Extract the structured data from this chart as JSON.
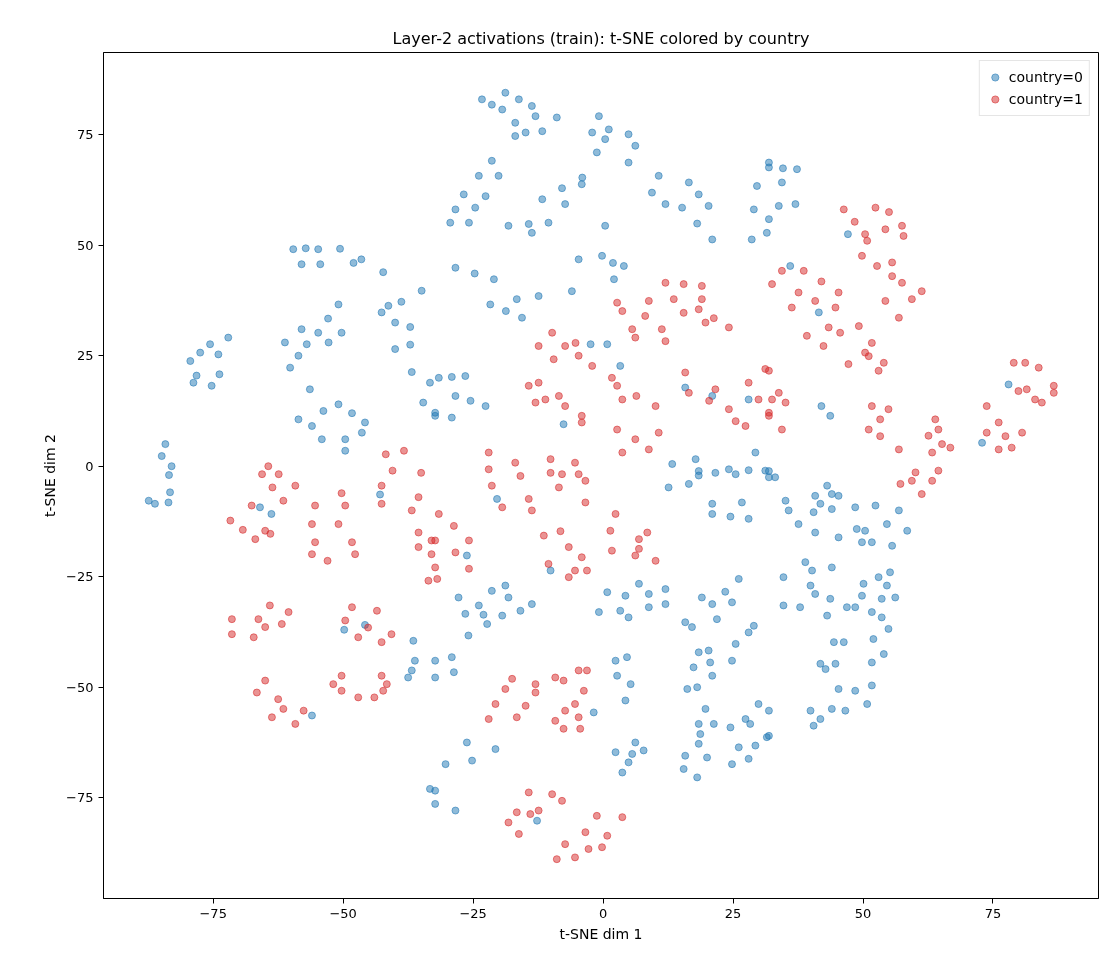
{
  "chart_data": {
    "type": "scatter",
    "title": "Layer-2 activations (train): t-SNE colored by country",
    "xlabel": "t-SNE dim 1",
    "ylabel": "t-SNE dim 2",
    "xlim": [
      -96.1,
      95.3
    ],
    "ylim": [
      -97.8,
      93.6
    ],
    "xticks": [
      -75,
      -50,
      -25,
      0,
      25,
      50,
      75
    ],
    "yticks": [
      -75,
      -50,
      -25,
      0,
      25,
      50,
      75
    ],
    "grid": false,
    "legend": "top right",
    "marker": "circle",
    "series": [
      {
        "name": "country=0",
        "color": "#1f77b4",
        "x": [
          -59.6,
          -57.2,
          -54.8,
          -58.0,
          -54.4,
          -50.6,
          -46.5,
          -42.3,
          -48.0,
          -42.6,
          -38.8,
          -34.9,
          -41.3,
          -40.0,
          -40.0,
          -37.1,
          -37.1,
          -54.8,
          -52.9,
          -50.9,
          -50.3,
          -52.8,
          -61.2,
          -58.0,
          -60.2,
          -58.6,
          -57.0,
          -79.4,
          -77.5,
          -75.6,
          -74.0,
          -72.1,
          -78.8,
          -78.2,
          -75.3,
          -73.8,
          -36.8,
          -33.3,
          -34.6,
          -32.3,
          -56.4,
          -53.8,
          -58.6,
          -56.0,
          -54.1,
          -50.9,
          -45.8,
          -46.4,
          -49.6,
          -49.6,
          -48.3,
          -84.2,
          -84.9,
          -83.0,
          -83.5,
          -83.3,
          -86.2,
          -87.4,
          -83.6,
          -66.0,
          -63.8,
          -42.9,
          -49.8,
          -45.8,
          -36.5,
          -36.2,
          -36.8,
          -37.5,
          -56.0,
          -33.3,
          -32.3,
          -23.3,
          -21.4,
          -19.4,
          -18.8,
          -16.2,
          -13.7,
          -16.9,
          -13.0,
          -8.9,
          -16.9,
          -11.7,
          -14.9,
          -0.8,
          -2.1,
          -1.2,
          1.1,
          0.4,
          4.9,
          6.2,
          4.9,
          -23.9,
          -21.4,
          -22.6,
          -20.1,
          -28.4,
          -26.8,
          -25.8,
          -24.6,
          -29.4,
          -11.7,
          -7.9,
          -4.0,
          -7.3,
          -4.1,
          -18.2,
          -14.3,
          -10.5,
          -13.7,
          0.4,
          10.7,
          9.4,
          12.0,
          16.5,
          18.4,
          20.3,
          15.2,
          18.1,
          21.0,
          29.6,
          29.0,
          28.6,
          31.9,
          -4.7,
          -0.2,
          4.0,
          2.1,
          1.9,
          -28.4,
          -24.7,
          -21.0,
          -21.7,
          -18.7,
          -15.6,
          -16.6,
          -12.4,
          -6.0,
          -2.4,
          0.8,
          -31.6,
          -29.1,
          -26.5,
          -28.4,
          -25.5,
          -22.6,
          -32.3,
          -29.1,
          -7.6,
          3.3,
          21.0,
          15.8,
          28.0,
          13.3,
          17.8,
          18.4,
          21.6,
          24.2,
          28.0,
          31.9,
          29.3,
          31.9,
          34.6,
          37.3,
          34.4,
          37.0,
          31.9,
          33.8,
          31.5,
          47.1,
          36.0,
          41.5,
          42.0,
          43.7,
          72.9,
          78.0,
          -20.4,
          12.6,
          16.5,
          21.0,
          26.7,
          21.0,
          24.5,
          28.0,
          18.4,
          25.5,
          31.9,
          -26.2,
          -10.1,
          -26.5,
          -23.0,
          -19.4,
          -25.9,
          -22.3,
          -21.4,
          -18.2,
          -18.8,
          -13.7,
          -27.8,
          -23.9,
          -15.9,
          -0.8,
          3.3,
          4.3,
          8.8,
          6.9,
          12.0,
          4.9,
          8.8,
          0.8,
          12.0,
          15.8,
          19.0,
          21.0,
          23.5,
          26.1,
          21.9,
          24.8,
          17.1,
          -32.3,
          -29.1,
          -32.3,
          -28.7,
          25.5,
          28.0,
          29.0,
          2.4,
          4.6,
          2.7,
          5.3,
          4.3,
          18.4,
          20.3,
          16.2,
          17.4,
          21.0,
          24.8,
          18.1,
          20.6,
          -1.8,
          -30.3,
          -26.2,
          -25.2,
          -20.7,
          -32.3,
          -28.4,
          2.4,
          6.2,
          3.7,
          4.9,
          5.6,
          7.8,
          18.4,
          19.7,
          15.8,
          18.4,
          18.1,
          20.0,
          15.5,
          21.3,
          18.7,
          24.5,
          27.4,
          28.3,
          29.9,
          24.8,
          26.1,
          28.0,
          29.3,
          31.9,
          -12.7,
          31.2,
          33.1,
          35.1,
          40.8,
          35.7,
          40.5,
          37.6,
          40.8,
          43.1,
          44.0,
          41.8,
          44.0,
          45.3,
          48.5,
          45.3,
          49.8,
          48.8,
          50.4,
          52.4,
          54.6,
          51.7,
          55.6,
          56.9,
          58.5,
          34.7,
          38.9,
          40.2,
          44.0,
          34.7,
          39.9,
          37.9,
          40.8,
          43.7,
          50.1,
          43.1,
          46.9,
          48.5,
          49.8,
          51.7,
          53.6,
          53.0,
          55.2,
          54.6,
          56.2,
          53.6,
          41.8,
          44.4,
          44.7,
          46.3,
          42.8,
          51.7,
          52.0,
          54.0,
          54.9,
          39.9,
          45.3,
          41.8,
          44.0,
          40.5,
          46.6,
          48.5,
          50.8,
          51.7,
          31.9,
          31.5
        ],
        "values": [
          49.1,
          49.3,
          49.1,
          45.7,
          45.7,
          49.2,
          46.8,
          43.9,
          46.0,
          34.8,
          37.2,
          39.7,
          36.3,
          32.5,
          26.5,
          31.5,
          27.5,
          30.2,
          33.4,
          36.6,
          30.2,
          28.0,
          28.0,
          31.0,
          22.3,
          25.0,
          27.6,
          23.8,
          25.7,
          27.6,
          25.3,
          29.1,
          18.9,
          20.5,
          18.2,
          20.8,
          21.3,
          18.9,
          14.4,
          11.4,
          17.4,
          12.5,
          10.6,
          9.1,
          6.1,
          14.0,
          9.9,
          7.6,
          6.1,
          3.5,
          12.0,
          5.0,
          2.3,
          0.0,
          -2.0,
          -5.9,
          -8.5,
          -7.8,
          -8.2,
          -9.3,
          -10.8,
          -6.4,
          -37.0,
          -35.9,
          -39.5,
          -44.0,
          -46.2,
          -47.8,
          -56.4,
          -73.0,
          -76.4,
          83.0,
          81.8,
          80.7,
          84.5,
          83.0,
          81.5,
          77.7,
          79.2,
          78.9,
          74.7,
          75.8,
          75.5,
          79.2,
          75.5,
          71.0,
          76.2,
          74.0,
          75.1,
          72.5,
          68.7,
          65.7,
          69.1,
          61.1,
          65.7,
          58.1,
          61.5,
          55.1,
          58.5,
          55.1,
          60.4,
          62.9,
          65.3,
          59.3,
          63.8,
          54.4,
          54.8,
          55.1,
          52.8,
          54.4,
          65.7,
          61.9,
          59.3,
          64.2,
          61.5,
          58.9,
          58.5,
          54.9,
          51.3,
          63.4,
          58.1,
          51.3,
          68.7,
          46.8,
          47.6,
          45.3,
          42.3,
          46.0,
          44.9,
          43.6,
          42.3,
          36.6,
          35.1,
          33.6,
          37.8,
          38.5,
          39.6,
          27.6,
          27.6,
          20.0,
          20.2,
          20.4,
          15.9,
          14.8,
          13.6,
          12.1,
          11.0,
          9.5,
          22.7,
          15.9,
          17.8,
          15.1,
          0.5,
          1.6,
          -1.1,
          -1.5,
          -0.7,
          -0.9,
          -1.1,
          3.1,
          67.6,
          67.4,
          67.2,
          64.2,
          59.3,
          55.9,
          58.9,
          52.8,
          52.5,
          45.3,
          34.8,
          13.6,
          11.4,
          5.3,
          18.5,
          -7.4,
          -4.8,
          -4.0,
          -8.5,
          -8.2,
          -10.8,
          -11.4,
          -11.9,
          -2.1,
          -1.8,
          -2.5,
          -20.2,
          -23.6,
          -33.4,
          -33.6,
          -33.8,
          -38.3,
          -35.7,
          -28.2,
          -29.7,
          -27.0,
          -31.2,
          -29.7,
          -31.5,
          -32.7,
          -33.0,
          -32.7,
          -29.3,
          -28.9,
          -26.6,
          -27.8,
          -34.2,
          -31.9,
          -28.5,
          -31.2,
          -35.3,
          -29.7,
          -31.2,
          -28.4,
          -25.5,
          -34.6,
          -30.8,
          -36.4,
          -44.0,
          -43.2,
          -47.8,
          -46.6,
          -40.2,
          -37.6,
          -36.1,
          -44.0,
          -43.2,
          -47.4,
          -49.3,
          -53.0,
          -42.1,
          -41.7,
          -50.4,
          -45.5,
          -47.4,
          -44.0,
          -50.0,
          -44.4,
          -55.7,
          -67.4,
          -62.5,
          -66.6,
          -64.0,
          -73.4,
          -77.9,
          -64.7,
          -62.5,
          -69.3,
          -67.0,
          -65.1,
          -64.3,
          -58.3,
          -54.9,
          -65.5,
          -62.8,
          -70.4,
          -65.9,
          -68.5,
          -58.3,
          -60.6,
          -59.1,
          -57.2,
          -58.3,
          -53.8,
          -67.4,
          -63.6,
          -66.2,
          -63.2,
          -61.0,
          -80.2,
          -1.0,
          -2.5,
          -7.8,
          -6.7,
          -10.0,
          -10.4,
          -13.1,
          -15.0,
          -4.4,
          -6.3,
          -8.5,
          -9.7,
          -6.7,
          -9.3,
          -16.1,
          -17.2,
          -14.2,
          -14.6,
          -8.9,
          -13.1,
          -17.2,
          -18.0,
          -10.0,
          -14.6,
          -25.1,
          -21.7,
          -23.6,
          -22.9,
          -31.5,
          -27.0,
          -31.9,
          -28.9,
          -30.0,
          -26.6,
          -33.8,
          -31.9,
          -31.9,
          -29.3,
          -33.0,
          -30.0,
          -25.1,
          -24.0,
          -27.0,
          -29.7,
          -34.2,
          -44.7,
          -39.8,
          -44.7,
          -39.8,
          -45.9,
          -44.4,
          -39.1,
          -42.5,
          -36.8,
          -55.3,
          -50.4,
          -57.2,
          -54.9,
          -58.7,
          -55.3,
          -50.8,
          -53.8,
          -49.6,
          -55.3,
          -61.3
        ]
      },
      {
        "name": "country=1",
        "color": "#d62728",
        "x": [
          -64.4,
          -65.6,
          -61.5,
          -63.6,
          -62.4,
          -59.2,
          -71.7,
          -69.3,
          -66.9,
          -67.6,
          -65.0,
          -64.0,
          -55.4,
          -49.6,
          -56.0,
          -50.9,
          -55.4,
          -48.3,
          -56.0,
          -47.7,
          -53.0,
          -50.3,
          -42.6,
          -35.5,
          -42.6,
          -36.8,
          -41.8,
          -40.5,
          -38.3,
          -35.0,
          -35.5,
          -33.0,
          -35.5,
          -33.0,
          -33.6,
          -64.1,
          -60.5,
          -71.4,
          -66.3,
          -71.4,
          -67.2,
          -65.0,
          -61.8,
          -48.3,
          -43.5,
          -49.6,
          -45.2,
          -40.7,
          -47.1,
          -42.6,
          -65.0,
          -66.6,
          -62.5,
          -63.7,
          -59.2,
          -61.5,
          -57.6,
          -50.3,
          -42.6,
          -51.9,
          -50.3,
          -42.3,
          -47.1,
          -41.6,
          -44.0,
          12.0,
          15.5,
          19.0,
          13.6,
          19.0,
          15.5,
          19.7,
          18.4,
          21.3,
          24.2,
          2.7,
          8.8,
          3.7,
          8.1,
          5.6,
          11.3,
          6.2,
          12.0,
          -12.4,
          -9.8,
          -9.5,
          -7.3,
          -4.7,
          -2.1,
          -5.3,
          -14.3,
          -13.0,
          -12.4,
          -11.1,
          -8.5,
          -4.1,
          -7.3,
          -4.1,
          1.7,
          3.7,
          2.7,
          6.4,
          10.1,
          2.7,
          10.7,
          3.7,
          8.8,
          6.2,
          15.8,
          21.6,
          16.5,
          20.4,
          24.2,
          25.5,
          27.4,
          28.0,
          29.9,
          31.2,
          31.9,
          -22.0,
          -16.9,
          -22.0,
          -15.9,
          -10.1,
          -5.4,
          -10.1,
          -4.7,
          46.3,
          48.4,
          50.4,
          52.4,
          57.5,
          54.3,
          57.8,
          50.8,
          55.0,
          49.8,
          52.7,
          55.6,
          55.6,
          61.3,
          54.3,
          59.4,
          56.9,
          57.5,
          32.5,
          36.3,
          34.4,
          37.6,
          38.6,
          42.0,
          45.3,
          40.8,
          44.7,
          39.2,
          43.4,
          42.4,
          47.2,
          45.6,
          51.1,
          49.2,
          51.7,
          50.4,
          54.0,
          53.0,
          31.9,
          33.8,
          32.5,
          35.1,
          31.9,
          34.4,
          51.7,
          53.3,
          54.9,
          56.9,
          51.1,
          53.3,
          63.9,
          64.5,
          62.6,
          63.3,
          60.1,
          65.2,
          66.8,
          59.4,
          61.3,
          63.3,
          57.2,
          64.5,
          73.8,
          73.8,
          76.1,
          76.1,
          78.6,
          80.6,
          77.4,
          79.0,
          79.9,
          81.2,
          81.5,
          83.8,
          86.7,
          84.4,
          86.7,
          83.1,
          -21.4,
          -14.3,
          -19.4,
          -13.7,
          -8.5,
          -3.4,
          -7.9,
          -3.4,
          -31.6,
          -25.8,
          -32.3,
          -28.4,
          -32.3,
          -25.8,
          -31.9,
          -28.7,
          -11.4,
          -6.6,
          -10.5,
          -5.4,
          -6.6,
          -4.1,
          -3.1,
          -8.2,
          2.4,
          8.5,
          1.4,
          6.9,
          1.7,
          6.2,
          6.9,
          10.1,
          -22.0,
          -16.6,
          -20.7,
          -14.9,
          -18.8,
          -13.0,
          -17.5,
          -9.2,
          -13.0,
          -7.6,
          -5.4,
          -4.7,
          -3.1,
          -9.2,
          -7.3,
          -7.6,
          -4.4,
          -3.7,
          -4.7,
          -18.2,
          -16.2,
          -16.6,
          -14.3,
          -14.0,
          -9.8,
          -7.9,
          -12.4,
          -3.4,
          -1.2,
          0.8,
          3.7,
          -8.9,
          -7.3,
          -5.4,
          -2.8,
          -0.2
        ],
        "values": [
          0.0,
          -1.8,
          -7.8,
          -4.8,
          -1.8,
          -4.4,
          -12.3,
          -14.4,
          -16.5,
          -8.9,
          -14.6,
          -15.3,
          -8.9,
          -8.9,
          -13.1,
          -13.1,
          -17.2,
          -17.2,
          -19.9,
          -19.9,
          -21.4,
          -6.1,
          -4.4,
          -7.0,
          -8.5,
          -10.0,
          2.7,
          -1.0,
          3.5,
          -1.5,
          -15.0,
          -16.8,
          -18.3,
          -19.9,
          -25.9,
          -31.5,
          -33.0,
          -34.6,
          -34.6,
          -38.0,
          -38.7,
          -36.4,
          -35.7,
          -31.9,
          -32.7,
          -34.9,
          -36.5,
          -38.0,
          -38.7,
          -39.8,
          -48.5,
          -51.2,
          -52.7,
          -56.8,
          -58.3,
          -54.9,
          -55.3,
          -47.4,
          -47.4,
          -49.3,
          -50.8,
          -50.8,
          -52.3,
          -49.3,
          -52.3,
          41.5,
          41.2,
          40.8,
          37.8,
          37.8,
          34.7,
          32.5,
          35.5,
          33.5,
          31.4,
          37.0,
          37.4,
          35.1,
          34.0,
          31.0,
          31.0,
          29.1,
          28.3,
          27.2,
          30.2,
          24.2,
          27.2,
          25.0,
          22.7,
          27.9,
          18.2,
          14.4,
          18.9,
          15.1,
          15.9,
          11.4,
          13.6,
          9.9,
          20.0,
          15.1,
          18.2,
          15.9,
          13.6,
          8.3,
          7.6,
          3.1,
          3.8,
          6.1,
          21.2,
          17.4,
          16.6,
          14.8,
          12.9,
          10.2,
          9.1,
          18.9,
          15.1,
          22.0,
          12.1,
          3.1,
          0.8,
          -0.7,
          -2.2,
          1.6,
          0.8,
          -1.5,
          -1.8,
          58.1,
          55.3,
          52.5,
          58.5,
          54.4,
          53.6,
          52.1,
          51.0,
          57.5,
          47.6,
          45.3,
          43.0,
          46.1,
          39.6,
          37.4,
          37.8,
          33.6,
          41.5,
          41.2,
          35.9,
          44.2,
          39.3,
          44.2,
          41.8,
          39.3,
          37.4,
          35.9,
          29.5,
          31.4,
          27.2,
          23.1,
          30.2,
          24.9,
          31.7,
          27.9,
          25.7,
          23.4,
          21.6,
          21.6,
          16.6,
          15.1,
          14.4,
          11.4,
          8.3,
          13.6,
          6.8,
          12.9,
          3.8,
          8.3,
          10.6,
          10.6,
          8.3,
          6.9,
          3.1,
          -1.4,
          5.0,
          4.2,
          -3.3,
          -6.3,
          -3.3,
          -4.0,
          -1.0,
          13.6,
          7.6,
          9.9,
          3.8,
          4.2,
          7.6,
          6.8,
          23.4,
          17.0,
          23.4,
          17.4,
          22.3,
          18.2,
          14.4,
          16.6,
          15.1,
          -4.4,
          -7.4,
          -9.3,
          -10.0,
          -4.8,
          -8.2,
          -1.8,
          -3.3,
          -10.8,
          -16.8,
          -16.8,
          -19.5,
          -22.9,
          -23.2,
          -25.5,
          -13.5,
          -15.7,
          -18.3,
          -22.1,
          -23.6,
          -25.1,
          -20.6,
          -23.6,
          -14.7,
          -10.8,
          -15.0,
          -14.6,
          -16.5,
          -19.1,
          -20.2,
          -18.7,
          -21.4,
          -57.2,
          -56.8,
          -53.8,
          -54.2,
          -50.4,
          -51.2,
          -48.1,
          -47.8,
          -49.3,
          -48.5,
          -53.8,
          -46.2,
          -46.2,
          -57.6,
          -55.3,
          -59.4,
          -59.4,
          -50.8,
          -56.8,
          -80.6,
          -83.2,
          -78.3,
          -73.8,
          -78.7,
          -74.2,
          -75.7,
          -77.9,
          -82.8,
          -79.1,
          -83.6,
          -79.4,
          -88.9,
          -85.5,
          -88.5,
          -86.6,
          -86.2
        ]
      }
    ]
  }
}
